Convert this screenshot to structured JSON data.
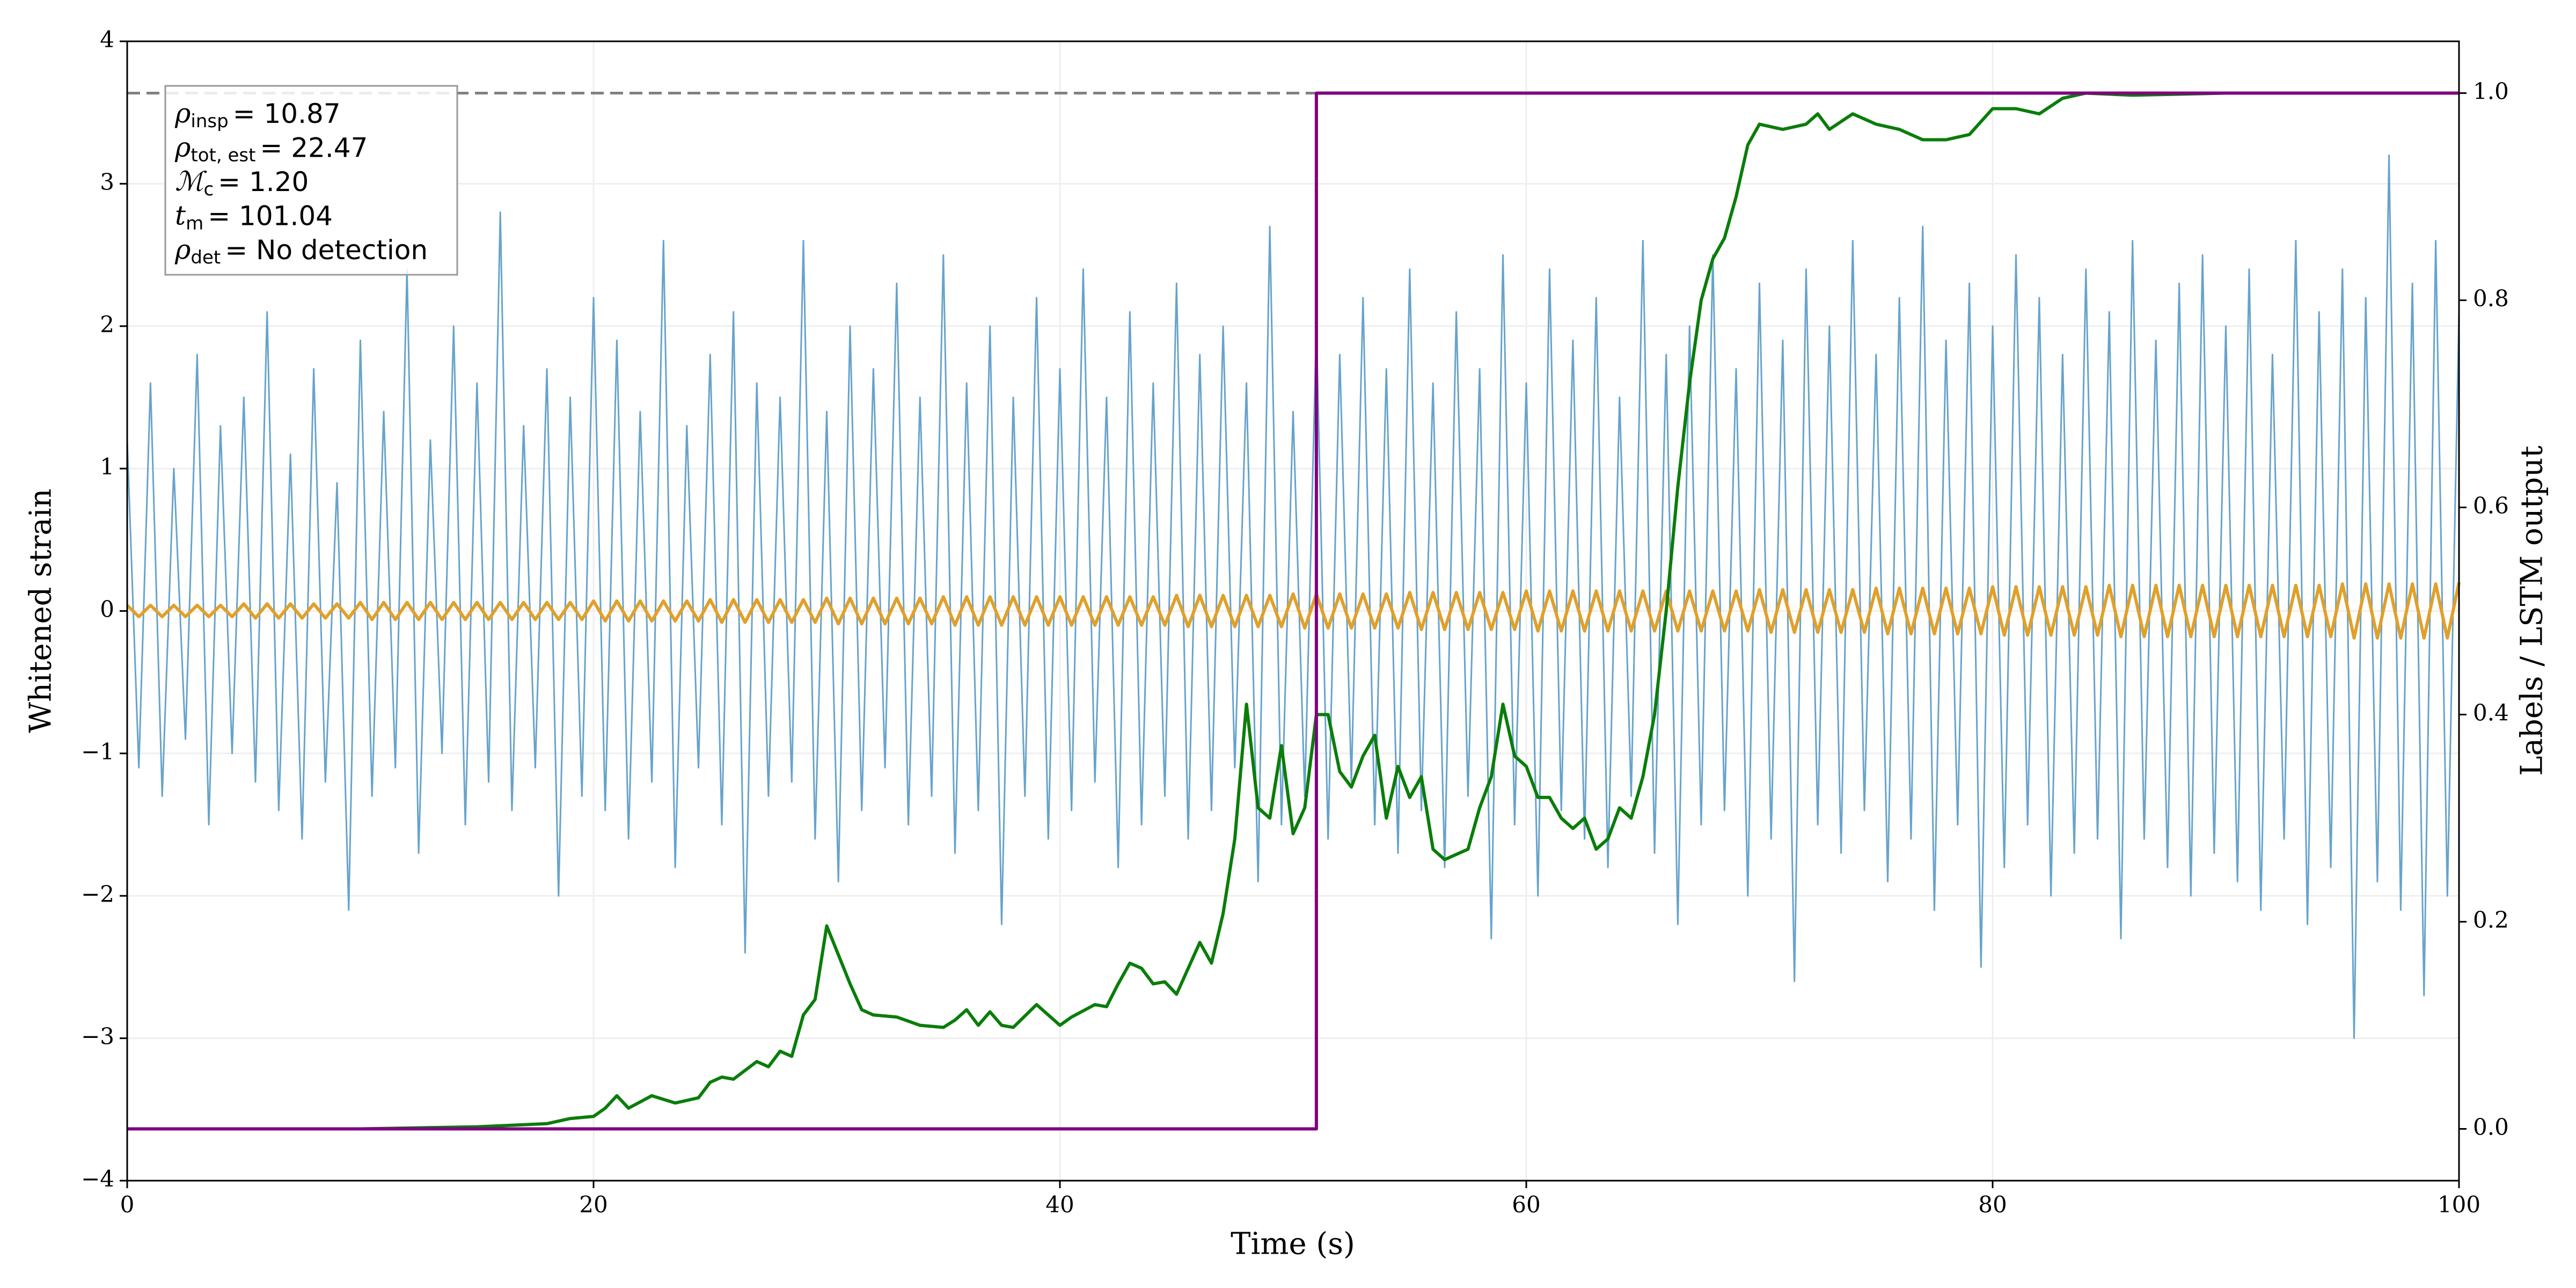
{
  "chart_data": {
    "type": "line",
    "xlabel": "Time (s)",
    "ylabel": "Whitened strain",
    "y2label": "Labels / LSTM output",
    "xlim": [
      0,
      100
    ],
    "xticks": [
      0,
      20,
      40,
      60,
      80,
      100
    ],
    "ylim": [
      -4,
      4
    ],
    "yticks": [
      {
        "value": -4,
        "label": "−4"
      },
      {
        "value": -3,
        "label": "−3"
      },
      {
        "value": -2,
        "label": "−2"
      },
      {
        "value": -1,
        "label": "−1"
      },
      0,
      1,
      2,
      3,
      4
    ],
    "y2lim": [
      -0.05,
      1.05
    ],
    "y2ticks": [
      {
        "value": 0,
        "label": "0.0"
      },
      {
        "value": 0.2,
        "label": "0.2"
      },
      {
        "value": 0.4,
        "label": "0.4"
      },
      {
        "value": 0.6,
        "label": "0.6"
      },
      {
        "value": 0.8,
        "label": "0.8"
      },
      {
        "value": 1,
        "label": "1.0"
      }
    ],
    "grid": true,
    "hline": {
      "value": 1,
      "axis": "y2",
      "color": "#808080",
      "dashed": true
    },
    "annotation": [
      {
        "symbol": "ρ",
        "sub": "insp",
        "rest": "= 10.87"
      },
      {
        "symbol": "ρ",
        "sub": "tot, est",
        "rest": "= 22.47"
      },
      {
        "symbol": "ℳ",
        "sub": "c",
        "rest": "= 1.20"
      },
      {
        "symbol": "t",
        "sub": "m",
        "rest": "= 101.04"
      },
      {
        "symbol": "ρ",
        "sub": "det",
        "rest": "= No detection"
      }
    ],
    "x": [
      0,
      0.5,
      1,
      1.5,
      2,
      2.5,
      3,
      3.5,
      4,
      4.5,
      5,
      5.5,
      6,
      6.5,
      7,
      7.5,
      8,
      8.5,
      9,
      9.5,
      10,
      10.5,
      11,
      11.5,
      12,
      12.5,
      13,
      13.5,
      14,
      14.5,
      15,
      15.5,
      16,
      16.5,
      17,
      17.5,
      18,
      18.5,
      19,
      19.5,
      20,
      20.5,
      21,
      21.5,
      22,
      22.5,
      23,
      23.5,
      24,
      24.5,
      25,
      25.5,
      26,
      26.5,
      27,
      27.5,
      28,
      28.5,
      29,
      29.5,
      30,
      30.5,
      31,
      31.5,
      32,
      32.5,
      33,
      33.5,
      34,
      34.5,
      35,
      35.5,
      36,
      36.5,
      37,
      37.5,
      38,
      38.5,
      39,
      39.5,
      40,
      40.5,
      41,
      41.5,
      42,
      42.5,
      43,
      43.5,
      44,
      44.5,
      45,
      45.5,
      46,
      46.5,
      47,
      47.5,
      48,
      48.5,
      49,
      49.5,
      50,
      50.5,
      51,
      51.5,
      52,
      52.5,
      53,
      53.5,
      54,
      54.5,
      55,
      55.5,
      56,
      56.5,
      57,
      57.5,
      58,
      58.5,
      59,
      59.5,
      60,
      60.5,
      61,
      61.5,
      62,
      62.5,
      63,
      63.5,
      64,
      64.5,
      65,
      65.5,
      66,
      66.5,
      67,
      67.5,
      68,
      68.5,
      69,
      69.5,
      70,
      70.5,
      71,
      71.5,
      72,
      72.5,
      73,
      73.5,
      74,
      74.5,
      75,
      75.5,
      76,
      76.5,
      77,
      77.5,
      78,
      78.5,
      79,
      79.5,
      80,
      80.5,
      81,
      81.5,
      82,
      82.5,
      83,
      83.5,
      84,
      84.5,
      85,
      85.5,
      86,
      86.5,
      87,
      87.5,
      88,
      88.5,
      89,
      89.5,
      90,
      90.5,
      91,
      91.5,
      92,
      92.5,
      93,
      93.5,
      94,
      94.5,
      95,
      95.5,
      96,
      96.5,
      97,
      97.5,
      98,
      98.5,
      99,
      99.5,
      100
    ],
    "series": [
      {
        "color": "#5f9ec9",
        "values": [
          1.2,
          -1.1,
          1.6,
          -1.3,
          1.0,
          -0.9,
          1.8,
          -1.5,
          1.3,
          -1.0,
          1.5,
          -1.2,
          2.1,
          -1.4,
          1.1,
          -1.6,
          1.7,
          -1.2,
          0.9,
          -2.1,
          1.9,
          -1.3,
          1.4,
          -1.1,
          2.4,
          -1.7,
          1.2,
          -1.0,
          2.0,
          -1.5,
          1.6,
          -1.2,
          2.8,
          -1.4,
          1.3,
          -1.1,
          1.7,
          -2.0,
          1.5,
          -1.3,
          2.2,
          -1.4,
          1.9,
          -1.6,
          1.4,
          -1.2,
          2.6,
          -1.8,
          1.3,
          -1.1,
          1.8,
          -1.5,
          2.1,
          -2.4,
          1.6,
          -1.3,
          1.5,
          -1.2,
          2.6,
          -1.6,
          1.4,
          -1.9,
          2.0,
          -1.4,
          1.7,
          -1.1,
          2.3,
          -1.5,
          1.5,
          -1.3,
          2.5,
          -1.7,
          1.6,
          -1.4,
          2.0,
          -2.2,
          1.5,
          -1.3,
          2.2,
          -1.6,
          1.7,
          -1.4,
          2.4,
          -1.2,
          1.5,
          -1.8,
          2.1,
          -1.5,
          1.6,
          -1.3,
          2.3,
          -1.6,
          1.8,
          -1.4,
          2.0,
          -1.1,
          1.6,
          -1.9,
          2.7,
          -1.5,
          1.4,
          -1.3,
          2.0,
          -1.6,
          1.8,
          -1.2,
          2.2,
          -1.5,
          1.7,
          -1.7,
          2.4,
          -1.4,
          1.6,
          -1.8,
          2.1,
          -1.3,
          1.7,
          -2.3,
          2.5,
          -1.5,
          1.6,
          -2.0,
          2.4,
          -1.4,
          1.9,
          -1.6,
          2.2,
          -1.8,
          1.5,
          -1.3,
          2.6,
          -1.7,
          1.8,
          -2.2,
          2.0,
          -1.5,
          2.5,
          -1.4,
          1.7,
          -2.0,
          2.3,
          -1.6,
          1.9,
          -2.6,
          2.4,
          -1.5,
          2.0,
          -1.7,
          2.6,
          -1.4,
          1.8,
          -1.9,
          2.2,
          -1.6,
          2.7,
          -2.1,
          1.9,
          -1.5,
          2.3,
          -2.5,
          2.0,
          -1.8,
          2.5,
          -1.5,
          2.2,
          -2.0,
          1.8,
          -1.7,
          2.4,
          -1.6,
          2.1,
          -2.3,
          2.6,
          -1.6,
          1.9,
          -1.8,
          2.3,
          -2.0,
          2.5,
          -1.7,
          2.0,
          -1.9,
          2.4,
          -2.1,
          1.8,
          -1.6,
          2.6,
          -2.2,
          2.1,
          -1.8,
          2.4,
          -3.0,
          2.2,
          -1.9,
          3.2,
          -2.1,
          2.3,
          -2.7,
          2.6,
          -2.0,
          2.1
        ]
      },
      {
        "color": "#e0a02a",
        "values": [
          0.04,
          -0.04,
          0.04,
          -0.04,
          0.04,
          -0.04,
          0.04,
          -0.04,
          0.04,
          -0.04,
          0.05,
          -0.05,
          0.05,
          -0.05,
          0.05,
          -0.05,
          0.05,
          -0.05,
          0.05,
          -0.05,
          0.06,
          -0.06,
          0.06,
          -0.06,
          0.06,
          -0.06,
          0.06,
          -0.06,
          0.06,
          -0.06,
          0.06,
          -0.06,
          0.06,
          -0.06,
          0.06,
          -0.06,
          0.06,
          -0.06,
          0.06,
          -0.06,
          0.07,
          -0.07,
          0.07,
          -0.07,
          0.07,
          -0.07,
          0.07,
          -0.07,
          0.07,
          -0.07,
          0.08,
          -0.08,
          0.08,
          -0.08,
          0.08,
          -0.08,
          0.08,
          -0.08,
          0.08,
          -0.08,
          0.09,
          -0.09,
          0.09,
          -0.09,
          0.09,
          -0.09,
          0.09,
          -0.09,
          0.09,
          -0.09,
          0.1,
          -0.1,
          0.1,
          -0.1,
          0.1,
          -0.1,
          0.1,
          -0.1,
          0.1,
          -0.1,
          0.1,
          -0.1,
          0.1,
          -0.1,
          0.1,
          -0.1,
          0.1,
          -0.1,
          0.1,
          -0.1,
          0.11,
          -0.11,
          0.11,
          -0.11,
          0.11,
          -0.11,
          0.11,
          -0.11,
          0.11,
          -0.11,
          0.12,
          -0.12,
          0.12,
          -0.12,
          0.12,
          -0.12,
          0.12,
          -0.12,
          0.12,
          -0.12,
          0.13,
          -0.13,
          0.13,
          -0.13,
          0.13,
          -0.13,
          0.13,
          -0.13,
          0.13,
          -0.13,
          0.14,
          -0.14,
          0.14,
          -0.14,
          0.14,
          -0.14,
          0.14,
          -0.14,
          0.14,
          -0.14,
          0.14,
          -0.14,
          0.14,
          -0.14,
          0.14,
          -0.14,
          0.14,
          -0.14,
          0.14,
          -0.14,
          0.15,
          -0.15,
          0.15,
          -0.15,
          0.15,
          -0.15,
          0.15,
          -0.15,
          0.15,
          -0.15,
          0.16,
          -0.16,
          0.16,
          -0.16,
          0.16,
          -0.16,
          0.16,
          -0.16,
          0.16,
          -0.16,
          0.17,
          -0.17,
          0.17,
          -0.17,
          0.17,
          -0.17,
          0.17,
          -0.17,
          0.17,
          -0.17,
          0.18,
          -0.18,
          0.18,
          -0.18,
          0.18,
          -0.18,
          0.18,
          -0.18,
          0.18,
          -0.18,
          0.18,
          -0.18,
          0.18,
          -0.18,
          0.18,
          -0.18,
          0.18,
          -0.18,
          0.18,
          -0.18,
          0.19,
          -0.19,
          0.19,
          -0.19,
          0.19,
          -0.19,
          0.19,
          -0.19,
          0.19,
          -0.19,
          0.2
        ]
      },
      {
        "color": "#0a7d0a",
        "axis": "y2",
        "x": [
          0,
          10,
          15,
          18,
          19,
          20,
          20.5,
          21,
          21.5,
          22.5,
          23.5,
          24.5,
          25,
          25.5,
          26,
          27,
          27.5,
          28,
          28.5,
          29,
          29.5,
          30,
          31,
          31.5,
          32,
          33,
          34,
          35,
          35.5,
          36,
          36.5,
          37,
          37.5,
          38,
          39,
          40,
          40.5,
          41.5,
          42,
          42.5,
          43,
          43.5,
          44,
          44.5,
          45,
          46,
          46.5,
          47,
          47.5,
          48,
          48.5,
          49,
          49.5,
          50,
          50.5,
          51,
          51.5,
          52,
          52.5,
          53,
          53.5,
          54,
          54.5,
          55,
          55.5,
          56,
          56.5,
          57.5,
          58,
          58.5,
          59,
          59.5,
          60,
          60.5,
          61,
          61.5,
          62,
          62.5,
          63,
          63.5,
          64,
          64.5,
          65,
          65.5,
          66,
          66.5,
          67,
          67.5,
          68,
          68.5,
          69,
          69.5,
          70,
          71,
          72,
          72.5,
          73,
          74,
          75,
          76,
          77,
          78,
          79,
          80,
          81,
          82,
          83,
          84,
          86,
          90,
          100
        ],
        "values": [
          0,
          0,
          0.002,
          0.005,
          0.01,
          0.012,
          0.02,
          0.032,
          0.02,
          0.032,
          0.025,
          0.03,
          0.045,
          0.05,
          0.048,
          0.065,
          0.06,
          0.075,
          0.07,
          0.11,
          0.125,
          0.196,
          0.14,
          0.115,
          0.11,
          0.108,
          0.1,
          0.098,
          0.105,
          0.115,
          0.1,
          0.113,
          0.1,
          0.098,
          0.12,
          0.1,
          0.108,
          0.12,
          0.118,
          0.14,
          0.16,
          0.155,
          0.14,
          0.142,
          0.13,
          0.18,
          0.16,
          0.208,
          0.28,
          0.41,
          0.31,
          0.3,
          0.37,
          0.285,
          0.31,
          0.4,
          0.4,
          0.345,
          0.33,
          0.36,
          0.38,
          0.3,
          0.35,
          0.32,
          0.34,
          0.27,
          0.26,
          0.27,
          0.31,
          0.34,
          0.41,
          0.36,
          0.35,
          0.32,
          0.32,
          0.3,
          0.29,
          0.3,
          0.27,
          0.28,
          0.31,
          0.3,
          0.34,
          0.4,
          0.5,
          0.62,
          0.72,
          0.8,
          0.84,
          0.86,
          0.9,
          0.95,
          0.97,
          0.965,
          0.97,
          0.98,
          0.965,
          0.98,
          0.97,
          0.965,
          0.955,
          0.955,
          0.96,
          0.985,
          0.985,
          0.98,
          0.995,
          1,
          0.998,
          1,
          1
        ]
      },
      {
        "color": "#800080",
        "axis": "y2",
        "x": [
          0,
          51,
          51,
          100
        ],
        "values": [
          0,
          0,
          1,
          1
        ]
      }
    ]
  }
}
